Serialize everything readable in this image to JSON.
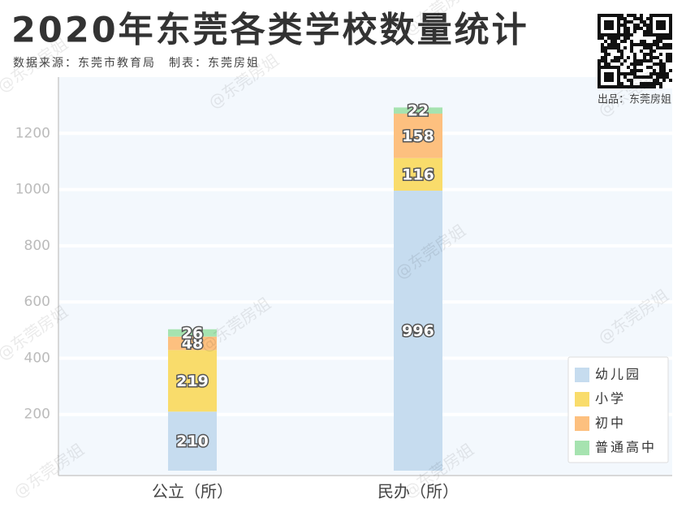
{
  "chart_data": {
    "type": "stacked_bar",
    "title": "2020年东莞各类学校数量统计",
    "subtitle": "数据来源：东莞市教育局　制表：东莞房姐",
    "credit": "出品：东莞房姐",
    "watermark": "@东莞房姐",
    "categories": [
      "公立（所）",
      "民办（所）"
    ],
    "series": [
      {
        "name": "幼儿园",
        "color": "#c6dcef",
        "values": [
          210,
          996
        ]
      },
      {
        "name": "小学",
        "color": "#f9dc6b",
        "values": [
          219,
          116
        ]
      },
      {
        "name": "初中",
        "color": "#fdc07f",
        "values": [
          48,
          158
        ]
      },
      {
        "name": "普通高中",
        "color": "#a6e3b0",
        "values": [
          26,
          22
        ]
      }
    ],
    "ylim": [
      0,
      1400
    ],
    "yticks": [
      200,
      400,
      600,
      800,
      1000,
      1200
    ],
    "grid": true,
    "legend": "bottom-right"
  }
}
